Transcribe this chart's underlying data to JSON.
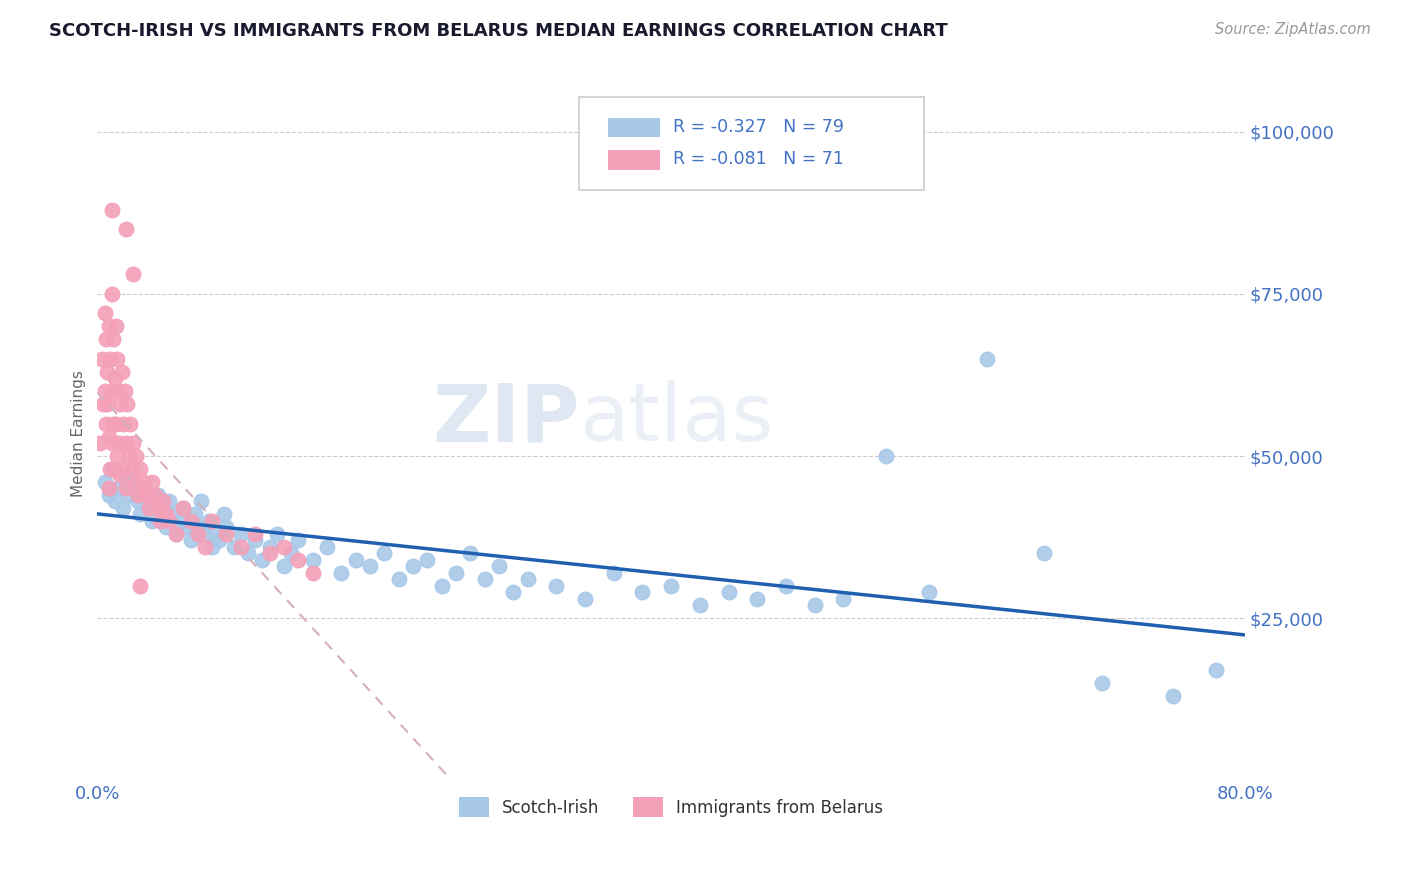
{
  "title": "SCOTCH-IRISH VS IMMIGRANTS FROM BELARUS MEDIAN EARNINGS CORRELATION CHART",
  "source": "Source: ZipAtlas.com",
  "ylabel": "Median Earnings",
  "yticks": [
    0,
    25000,
    50000,
    75000,
    100000
  ],
  "ytick_labels": [
    "",
    "$25,000",
    "$50,000",
    "$75,000",
    "$100,000"
  ],
  "xmin": 0.0,
  "xmax": 0.8,
  "ymin": 0,
  "ymax": 107000,
  "legend_r1": "R = -0.327",
  "legend_n1": "N = 79",
  "legend_r2": "R = -0.081",
  "legend_n2": "N = 71",
  "series1_name": "Scotch-Irish",
  "series2_name": "Immigrants from Belarus",
  "series1_color": "#a8c8e8",
  "series2_color": "#f4a0b8",
  "series1_line_color": "#2060b0",
  "series2_line_color": "#e08090",
  "series2_line_dash_color": "#d4a0b0",
  "title_color": "#222222",
  "axis_label_color": "#4472c4",
  "watermark_zip": "ZIP",
  "watermark_atlas": "atlas",
  "scatter1_x": [
    0.005,
    0.008,
    0.01,
    0.012,
    0.015,
    0.018,
    0.02,
    0.022,
    0.025,
    0.028,
    0.03,
    0.032,
    0.035,
    0.038,
    0.04,
    0.042,
    0.045,
    0.048,
    0.05,
    0.052,
    0.055,
    0.058,
    0.06,
    0.062,
    0.065,
    0.068,
    0.07,
    0.072,
    0.075,
    0.078,
    0.08,
    0.082,
    0.085,
    0.088,
    0.09,
    0.095,
    0.1,
    0.105,
    0.11,
    0.115,
    0.12,
    0.125,
    0.13,
    0.135,
    0.14,
    0.15,
    0.16,
    0.17,
    0.18,
    0.19,
    0.2,
    0.21,
    0.22,
    0.23,
    0.24,
    0.25,
    0.26,
    0.27,
    0.28,
    0.29,
    0.3,
    0.32,
    0.34,
    0.36,
    0.38,
    0.4,
    0.42,
    0.44,
    0.46,
    0.48,
    0.5,
    0.52,
    0.55,
    0.58,
    0.62,
    0.66,
    0.7,
    0.75,
    0.78
  ],
  "scatter1_y": [
    46000,
    44000,
    48000,
    43000,
    45000,
    42000,
    47000,
    44000,
    46000,
    43000,
    41000,
    45000,
    43000,
    40000,
    42000,
    44000,
    41000,
    39000,
    43000,
    41000,
    38000,
    40000,
    42000,
    39000,
    37000,
    41000,
    39000,
    43000,
    38000,
    40000,
    36000,
    38000,
    37000,
    41000,
    39000,
    36000,
    38000,
    35000,
    37000,
    34000,
    36000,
    38000,
    33000,
    35000,
    37000,
    34000,
    36000,
    32000,
    34000,
    33000,
    35000,
    31000,
    33000,
    34000,
    30000,
    32000,
    35000,
    31000,
    33000,
    29000,
    31000,
    30000,
    28000,
    32000,
    29000,
    30000,
    27000,
    29000,
    28000,
    30000,
    27000,
    28000,
    50000,
    29000,
    65000,
    35000,
    15000,
    13000,
    17000
  ],
  "scatter2_x": [
    0.002,
    0.003,
    0.004,
    0.005,
    0.005,
    0.006,
    0.006,
    0.007,
    0.007,
    0.008,
    0.008,
    0.009,
    0.009,
    0.01,
    0.01,
    0.01,
    0.011,
    0.011,
    0.012,
    0.012,
    0.013,
    0.013,
    0.014,
    0.014,
    0.015,
    0.015,
    0.016,
    0.016,
    0.017,
    0.018,
    0.018,
    0.019,
    0.02,
    0.02,
    0.021,
    0.022,
    0.023,
    0.024,
    0.025,
    0.026,
    0.027,
    0.028,
    0.03,
    0.032,
    0.034,
    0.036,
    0.038,
    0.04,
    0.042,
    0.044,
    0.046,
    0.048,
    0.05,
    0.055,
    0.06,
    0.065,
    0.07,
    0.075,
    0.08,
    0.09,
    0.1,
    0.11,
    0.12,
    0.13,
    0.14,
    0.15,
    0.02,
    0.025,
    0.03,
    0.01,
    0.008
  ],
  "scatter2_y": [
    52000,
    65000,
    58000,
    72000,
    60000,
    68000,
    55000,
    63000,
    58000,
    70000,
    53000,
    65000,
    48000,
    75000,
    60000,
    52000,
    68000,
    55000,
    62000,
    48000,
    70000,
    55000,
    65000,
    50000,
    60000,
    52000,
    58000,
    47000,
    63000,
    55000,
    48000,
    60000,
    52000,
    45000,
    58000,
    50000,
    55000,
    48000,
    52000,
    46000,
    50000,
    44000,
    48000,
    46000,
    44000,
    42000,
    46000,
    44000,
    42000,
    40000,
    43000,
    41000,
    40000,
    38000,
    42000,
    40000,
    38000,
    36000,
    40000,
    38000,
    36000,
    38000,
    35000,
    36000,
    34000,
    32000,
    85000,
    78000,
    30000,
    88000,
    45000
  ]
}
